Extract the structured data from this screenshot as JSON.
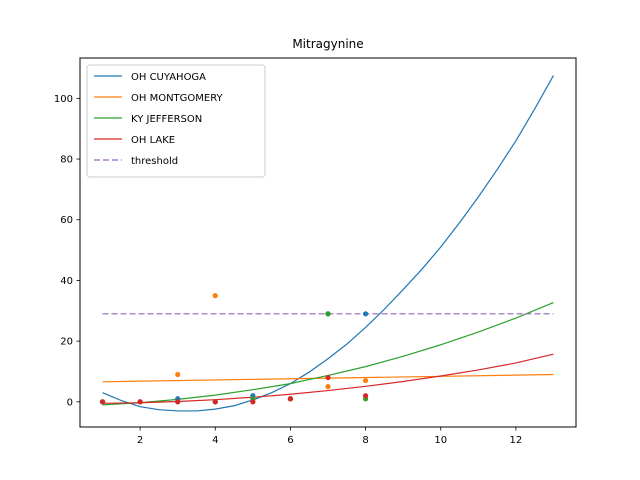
{
  "chart_data": {
    "type": "line",
    "title": "Mitragynine",
    "xlabel": "",
    "ylabel": "",
    "xlim": [
      0.4,
      13.6
    ],
    "ylim": [
      -8.3,
      113.3
    ],
    "xticks": [
      2,
      4,
      6,
      8,
      10,
      12
    ],
    "yticks": [
      0,
      20,
      40,
      60,
      80,
      100
    ],
    "grid": false,
    "legend_position": "top-left",
    "series": [
      {
        "name": "OH CUYAHOGA",
        "color": "#1f77b4",
        "style": "solid",
        "curve_x": [
          1.0,
          1.5,
          2.0,
          2.5,
          3.0,
          3.5,
          4.0,
          4.5,
          5.0,
          5.5,
          6.0,
          6.5,
          7.0,
          7.5,
          8.0,
          8.5,
          9.0,
          9.5,
          10.0,
          10.5,
          11.0,
          11.5,
          12.0,
          12.5,
          13.0
        ],
        "curve_y": [
          3.0,
          0.4,
          -1.6,
          -2.6,
          -3.0,
          -3.0,
          -2.4,
          -1.3,
          0.6,
          3.0,
          6.0,
          9.8,
          14.2,
          19.0,
          24.5,
          30.5,
          37.0,
          43.7,
          51.0,
          59.0,
          67.5,
          76.5,
          86.0,
          96.5,
          107.5
        ],
        "points": [
          [
            1,
            0
          ],
          [
            2,
            0
          ],
          [
            3,
            1
          ],
          [
            4,
            0
          ],
          [
            5,
            2
          ],
          [
            6,
            1
          ],
          [
            7,
            29
          ],
          [
            8,
            29
          ]
        ]
      },
      {
        "name": "OH MONTGOMERY",
        "color": "#ff7f0e",
        "style": "solid",
        "curve_x": [
          1.0,
          13.0
        ],
        "curve_y": [
          6.6,
          9.0
        ],
        "points": [
          [
            1,
            0
          ],
          [
            2,
            0
          ],
          [
            3,
            9
          ],
          [
            4,
            35
          ],
          [
            5,
            0
          ],
          [
            6,
            1
          ],
          [
            7,
            5
          ],
          [
            8,
            7
          ]
        ]
      },
      {
        "name": "KY JEFFERSON",
        "color": "#2ca02c",
        "style": "solid",
        "curve_x": [
          1.0,
          2.0,
          3.0,
          4.0,
          5.0,
          6.0,
          7.0,
          8.0,
          9.0,
          10.0,
          11.0,
          12.0,
          13.0
        ],
        "curve_y": [
          -1.0,
          -0.3,
          0.8,
          2.2,
          4.0,
          6.0,
          8.7,
          11.6,
          15.0,
          18.8,
          23.0,
          27.6,
          32.7
        ],
        "points": [
          [
            1,
            0
          ],
          [
            2,
            0
          ],
          [
            3,
            0
          ],
          [
            4,
            0
          ],
          [
            5,
            1
          ],
          [
            6,
            1
          ],
          [
            7,
            29
          ],
          [
            8,
            1
          ]
        ]
      },
      {
        "name": "OH LAKE",
        "color": "#d62728",
        "style": "solid",
        "curve_x": [
          1.0,
          2.0,
          3.0,
          4.0,
          5.0,
          6.0,
          7.0,
          8.0,
          9.0,
          10.0,
          11.0,
          12.0,
          13.0
        ],
        "curve_y": [
          -0.5,
          -0.3,
          0.1,
          0.7,
          1.5,
          2.5,
          3.7,
          5.1,
          6.7,
          8.5,
          10.5,
          12.8,
          15.7
        ],
        "points": [
          [
            1,
            0
          ],
          [
            2,
            0
          ],
          [
            3,
            0
          ],
          [
            4,
            0
          ],
          [
            5,
            0
          ],
          [
            6,
            1
          ],
          [
            7,
            8
          ],
          [
            8,
            2
          ]
        ]
      },
      {
        "name": "threshold",
        "color": "#9467bd",
        "style": "dashed",
        "curve_x": [
          1.0,
          13.0
        ],
        "curve_y": [
          29.0,
          29.0
        ],
        "points": []
      }
    ]
  }
}
